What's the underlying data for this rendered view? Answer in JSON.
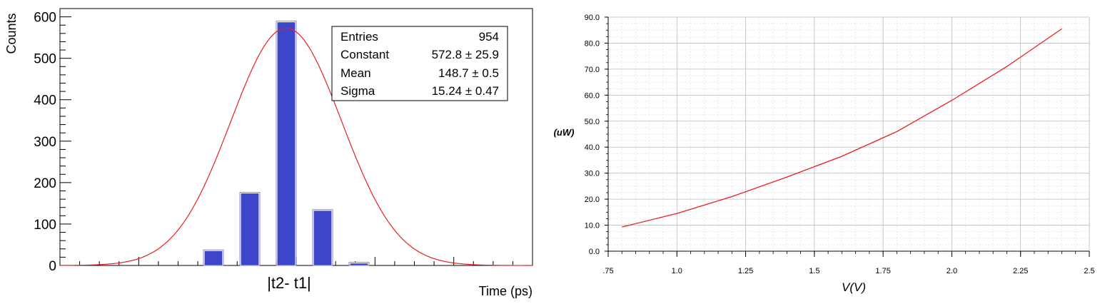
{
  "chart_data": [
    {
      "type": "bar",
      "xlabel": "Time (ps)",
      "ylabel": "Counts",
      "annotation": "|t2- t1|",
      "ylim": [
        0,
        620
      ],
      "y_ticks": [
        "0",
        "100",
        "200",
        "300",
        "400",
        "500",
        "600"
      ],
      "categories": [
        "bin1",
        "bin2",
        "bin3",
        "bin4",
        "bin5"
      ],
      "values": [
        36,
        175,
        588,
        133,
        6
      ],
      "fit_curve": {
        "type": "gaussian",
        "constant": 572.8,
        "mean": 148.7,
        "sigma": 15.24
      },
      "stats_box": {
        "rows": [
          {
            "label": "Entries",
            "value": "954"
          },
          {
            "label": "Constant",
            "value": "572.8 ± 25.9"
          },
          {
            "label": "Mean",
            "value": "148.7 ± 0.5"
          },
          {
            "label": "Sigma",
            "value": "15.24 ± 0.47"
          }
        ],
        "position": "top-right"
      },
      "colors": {
        "bar": "#3d46c8",
        "fit": "#e8201e"
      },
      "grid": false
    },
    {
      "type": "line",
      "xlabel": "V(V)",
      "ylabel": "(uW)",
      "xlim": [
        0.75,
        2.5
      ],
      "ylim": [
        0,
        90
      ],
      "x_ticks": [
        ".75",
        "1.0",
        "1.25",
        "1.5",
        "1.75",
        "2.0",
        "2.25",
        "2.5"
      ],
      "y_ticks": [
        "0.0",
        "10.0",
        "20.0",
        "30.0",
        "40.0",
        "50.0",
        "60.0",
        "70.0",
        "80.0",
        "90.0"
      ],
      "series": [
        {
          "x": [
            0.8,
            1.0,
            1.2,
            1.4,
            1.6,
            1.8,
            2.0,
            2.2,
            2.4
          ],
          "y": [
            9.3,
            14.5,
            21.0,
            28.5,
            36.5,
            46.0,
            58.0,
            71.0,
            85.5
          ]
        }
      ],
      "colors": {
        "line": "#e8201e",
        "grid_major": "#bdbdbd",
        "grid_minor": "#e2e2e2"
      },
      "grid": true
    }
  ]
}
